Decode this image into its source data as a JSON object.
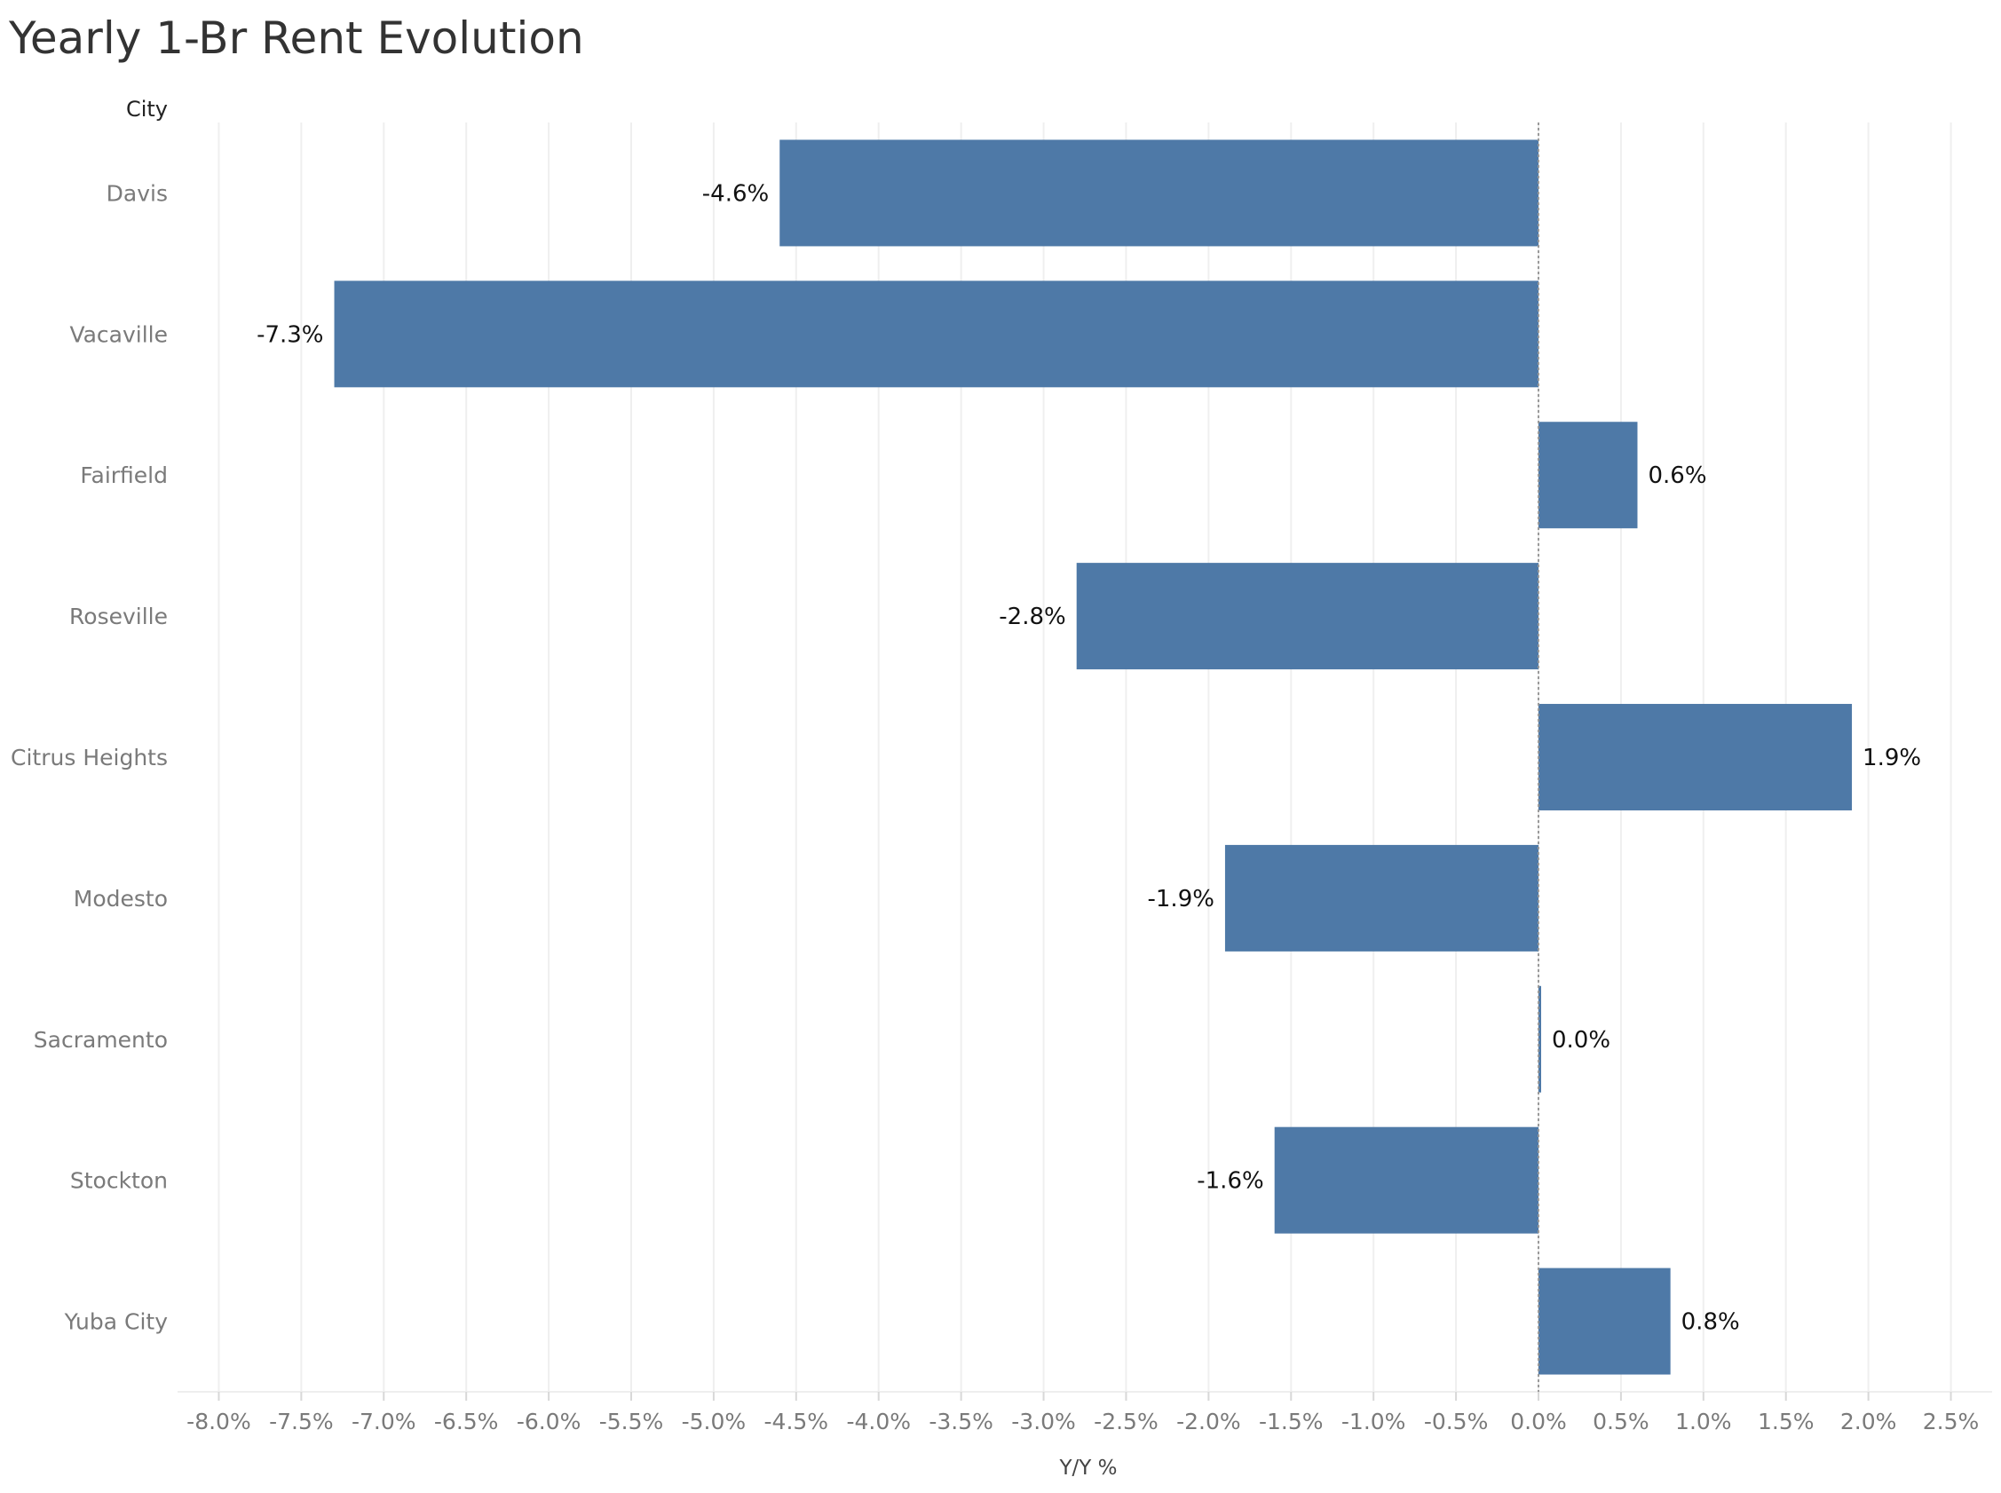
{
  "title": "Yearly 1-Br Rent Evolution",
  "chart_data": {
    "type": "bar",
    "orientation": "horizontal",
    "row_header": "City",
    "categories": [
      "Davis",
      "Vacaville",
      "Fairfield",
      "Roseville",
      "Citrus Heights",
      "Modesto",
      "Sacramento",
      "Stockton",
      "Yuba City"
    ],
    "values": [
      -4.6,
      -7.3,
      0.6,
      -2.8,
      1.9,
      -1.9,
      0.0,
      -1.6,
      0.8
    ],
    "data_labels": [
      "-4.6%",
      "-7.3%",
      "0.6%",
      "-2.8%",
      "1.9%",
      "-1.9%",
      "0.0%",
      "-1.6%",
      "0.8%"
    ],
    "xlabel": "Y/Y %",
    "ylabel": "",
    "xlim": [
      -8.25,
      2.75
    ],
    "xticks": [
      -8.0,
      -7.5,
      -7.0,
      -6.5,
      -6.0,
      -5.5,
      -5.0,
      -4.5,
      -4.0,
      -3.5,
      -3.0,
      -2.5,
      -2.0,
      -1.5,
      -1.0,
      -0.5,
      0.0,
      0.5,
      1.0,
      1.5,
      2.0,
      2.5
    ],
    "xtick_labels": [
      "-8.0%",
      "-7.5%",
      "-7.0%",
      "-6.5%",
      "-6.0%",
      "-5.5%",
      "-5.0%",
      "-4.5%",
      "-4.0%",
      "-3.5%",
      "-3.0%",
      "-2.5%",
      "-2.0%",
      "-1.5%",
      "-1.0%",
      "-0.5%",
      "0.0%",
      "0.5%",
      "1.0%",
      "1.5%",
      "2.0%",
      "2.5%"
    ],
    "grid": "vertical",
    "bar_color": "#4e79a7",
    "zero_line": "dotted"
  }
}
